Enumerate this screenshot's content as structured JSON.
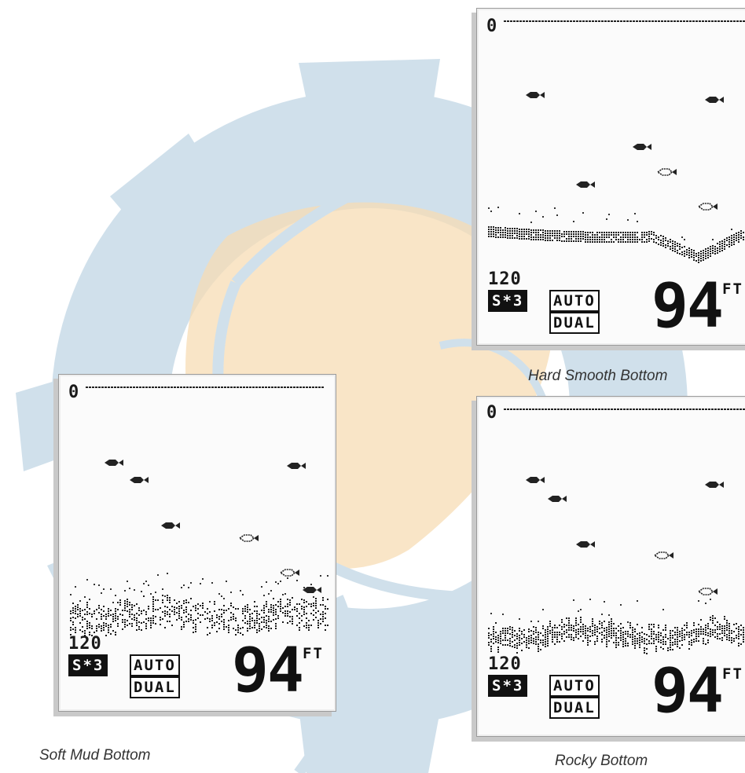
{
  "colors": {
    "watermark_blue": "#c8dbe8",
    "watermark_orange": "#f6d7a8",
    "ink": "#111111"
  },
  "screens": [
    {
      "id": "soft-mud",
      "caption": "Soft Mud Bottom",
      "depth_top": "0",
      "depth_bottom": "120",
      "mode_badges": [
        "S*3",
        "AUTO",
        "DUAL"
      ],
      "depth_value": "94",
      "depth_unit": "FT",
      "bottom_type": "soft-mud",
      "fish_count": 7
    },
    {
      "id": "hard-smooth",
      "caption": "Hard Smooth Bottom",
      "depth_top": "0",
      "depth_bottom": "120",
      "mode_badges": [
        "S*3",
        "AUTO",
        "DUAL"
      ],
      "depth_value": "94",
      "depth_unit": "FT",
      "bottom_type": "hard-smooth",
      "fish_count": 6
    },
    {
      "id": "rocky",
      "caption": "Rocky Bottom",
      "depth_top": "0",
      "depth_bottom": "120",
      "mode_badges": [
        "S*3",
        "AUTO",
        "DUAL"
      ],
      "depth_value": "94",
      "depth_unit": "FT",
      "bottom_type": "rocky",
      "fish_count": 6
    }
  ]
}
